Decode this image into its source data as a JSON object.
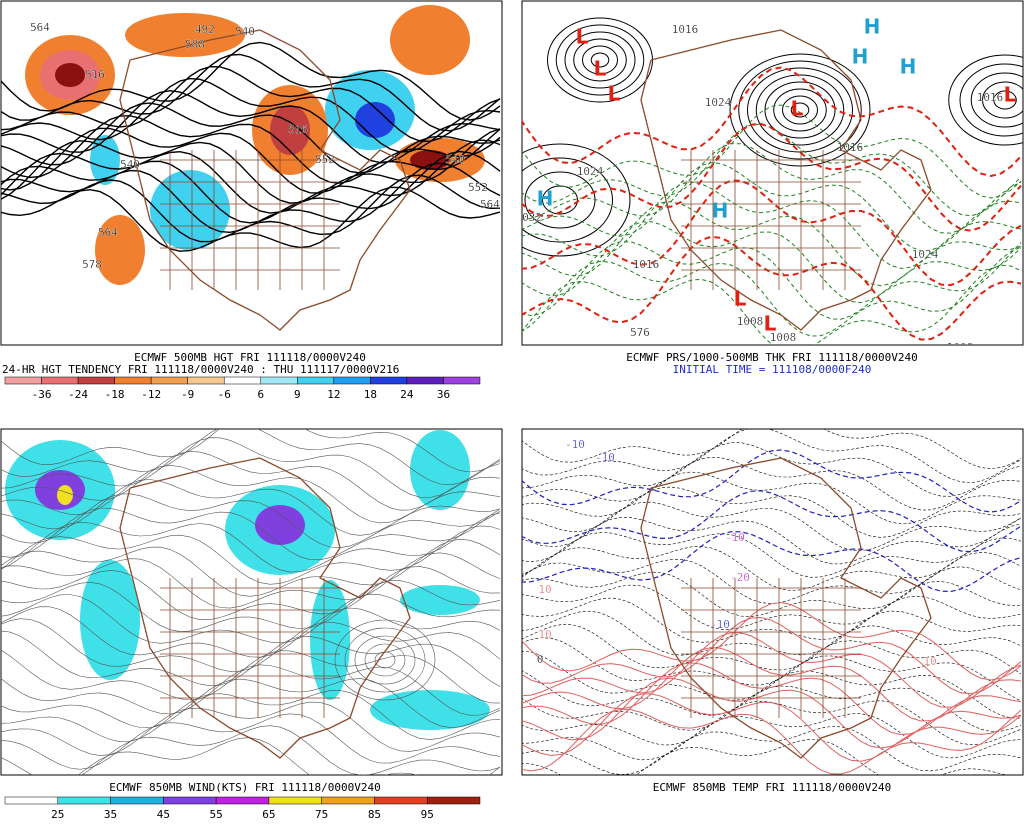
{
  "panels": [
    {
      "caption": [
        "ECMWF 500MB HGT FRI 111118/0000V240",
        "24-HR HGT TENDENCY FRI 111118/0000V240 : THU 111117/0000V216"
      ],
      "colorbar": {
        "labels": [
          -36,
          -24,
          -18,
          -12,
          -9,
          -6,
          6,
          9,
          12,
          18,
          24,
          36
        ],
        "colors": [
          "#f4a0a0",
          "#e87070",
          "#c04040",
          "#f08030",
          "#f0a050",
          "#f8c890",
          "#ffffff",
          "#a0e8f8",
          "#40d0f0",
          "#20a0f0",
          "#2040e0",
          "#6020c0",
          "#a040e0"
        ]
      },
      "contour_labels": [
        "564",
        "516",
        "492",
        "588",
        "540",
        "516",
        "540",
        "552",
        "564",
        "540",
        "564",
        "578",
        "552"
      ]
    },
    {
      "caption": [
        "ECMWF PRS/1000-500MB THK FRI 111118/0000V240"
      ],
      "initial_time": "INITIAL TIME = 111108/0000F240",
      "markers": [
        {
          "label": "L",
          "color": "#e02010"
        },
        {
          "label": "L",
          "color": "#e02010"
        },
        {
          "label": "L",
          "color": "#e02010"
        },
        {
          "label": "L",
          "color": "#e02010"
        },
        {
          "label": "L",
          "color": "#e02010"
        },
        {
          "label": "L",
          "color": "#e02010"
        },
        {
          "label": "L",
          "color": "#e02010"
        },
        {
          "label": "H",
          "color": "#20a0d0"
        },
        {
          "label": "H",
          "color": "#20a0d0"
        },
        {
          "label": "H",
          "color": "#20a0d0"
        },
        {
          "label": "H",
          "color": "#20a0d0"
        },
        {
          "label": "H",
          "color": "#20a0d0"
        }
      ],
      "contour_labels": [
        "1016",
        "1024",
        "1024",
        "1016",
        "032",
        "1024",
        "1016",
        "1008",
        "1008",
        "576",
        "1008",
        "1016"
      ]
    },
    {
      "caption": [
        "ECMWF 850MB WIND(KTS) FRI 111118/0000V240"
      ],
      "colorbar": {
        "labels": [
          25,
          35,
          45,
          55,
          65,
          75,
          85,
          95
        ],
        "colors": [
          "#ffffff",
          "#40e0e8",
          "#20b0e0",
          "#8040e0",
          "#c020e0",
          "#f0e020",
          "#f0a020",
          "#e04020",
          "#a02010"
        ]
      }
    },
    {
      "caption": [
        "ECMWF 850MB TEMP FRI 111118/0000V240"
      ],
      "contour_labels": [
        "-10",
        "-10",
        "-20",
        "-10",
        "-10",
        "10",
        "10",
        "10",
        "0"
      ]
    }
  ]
}
